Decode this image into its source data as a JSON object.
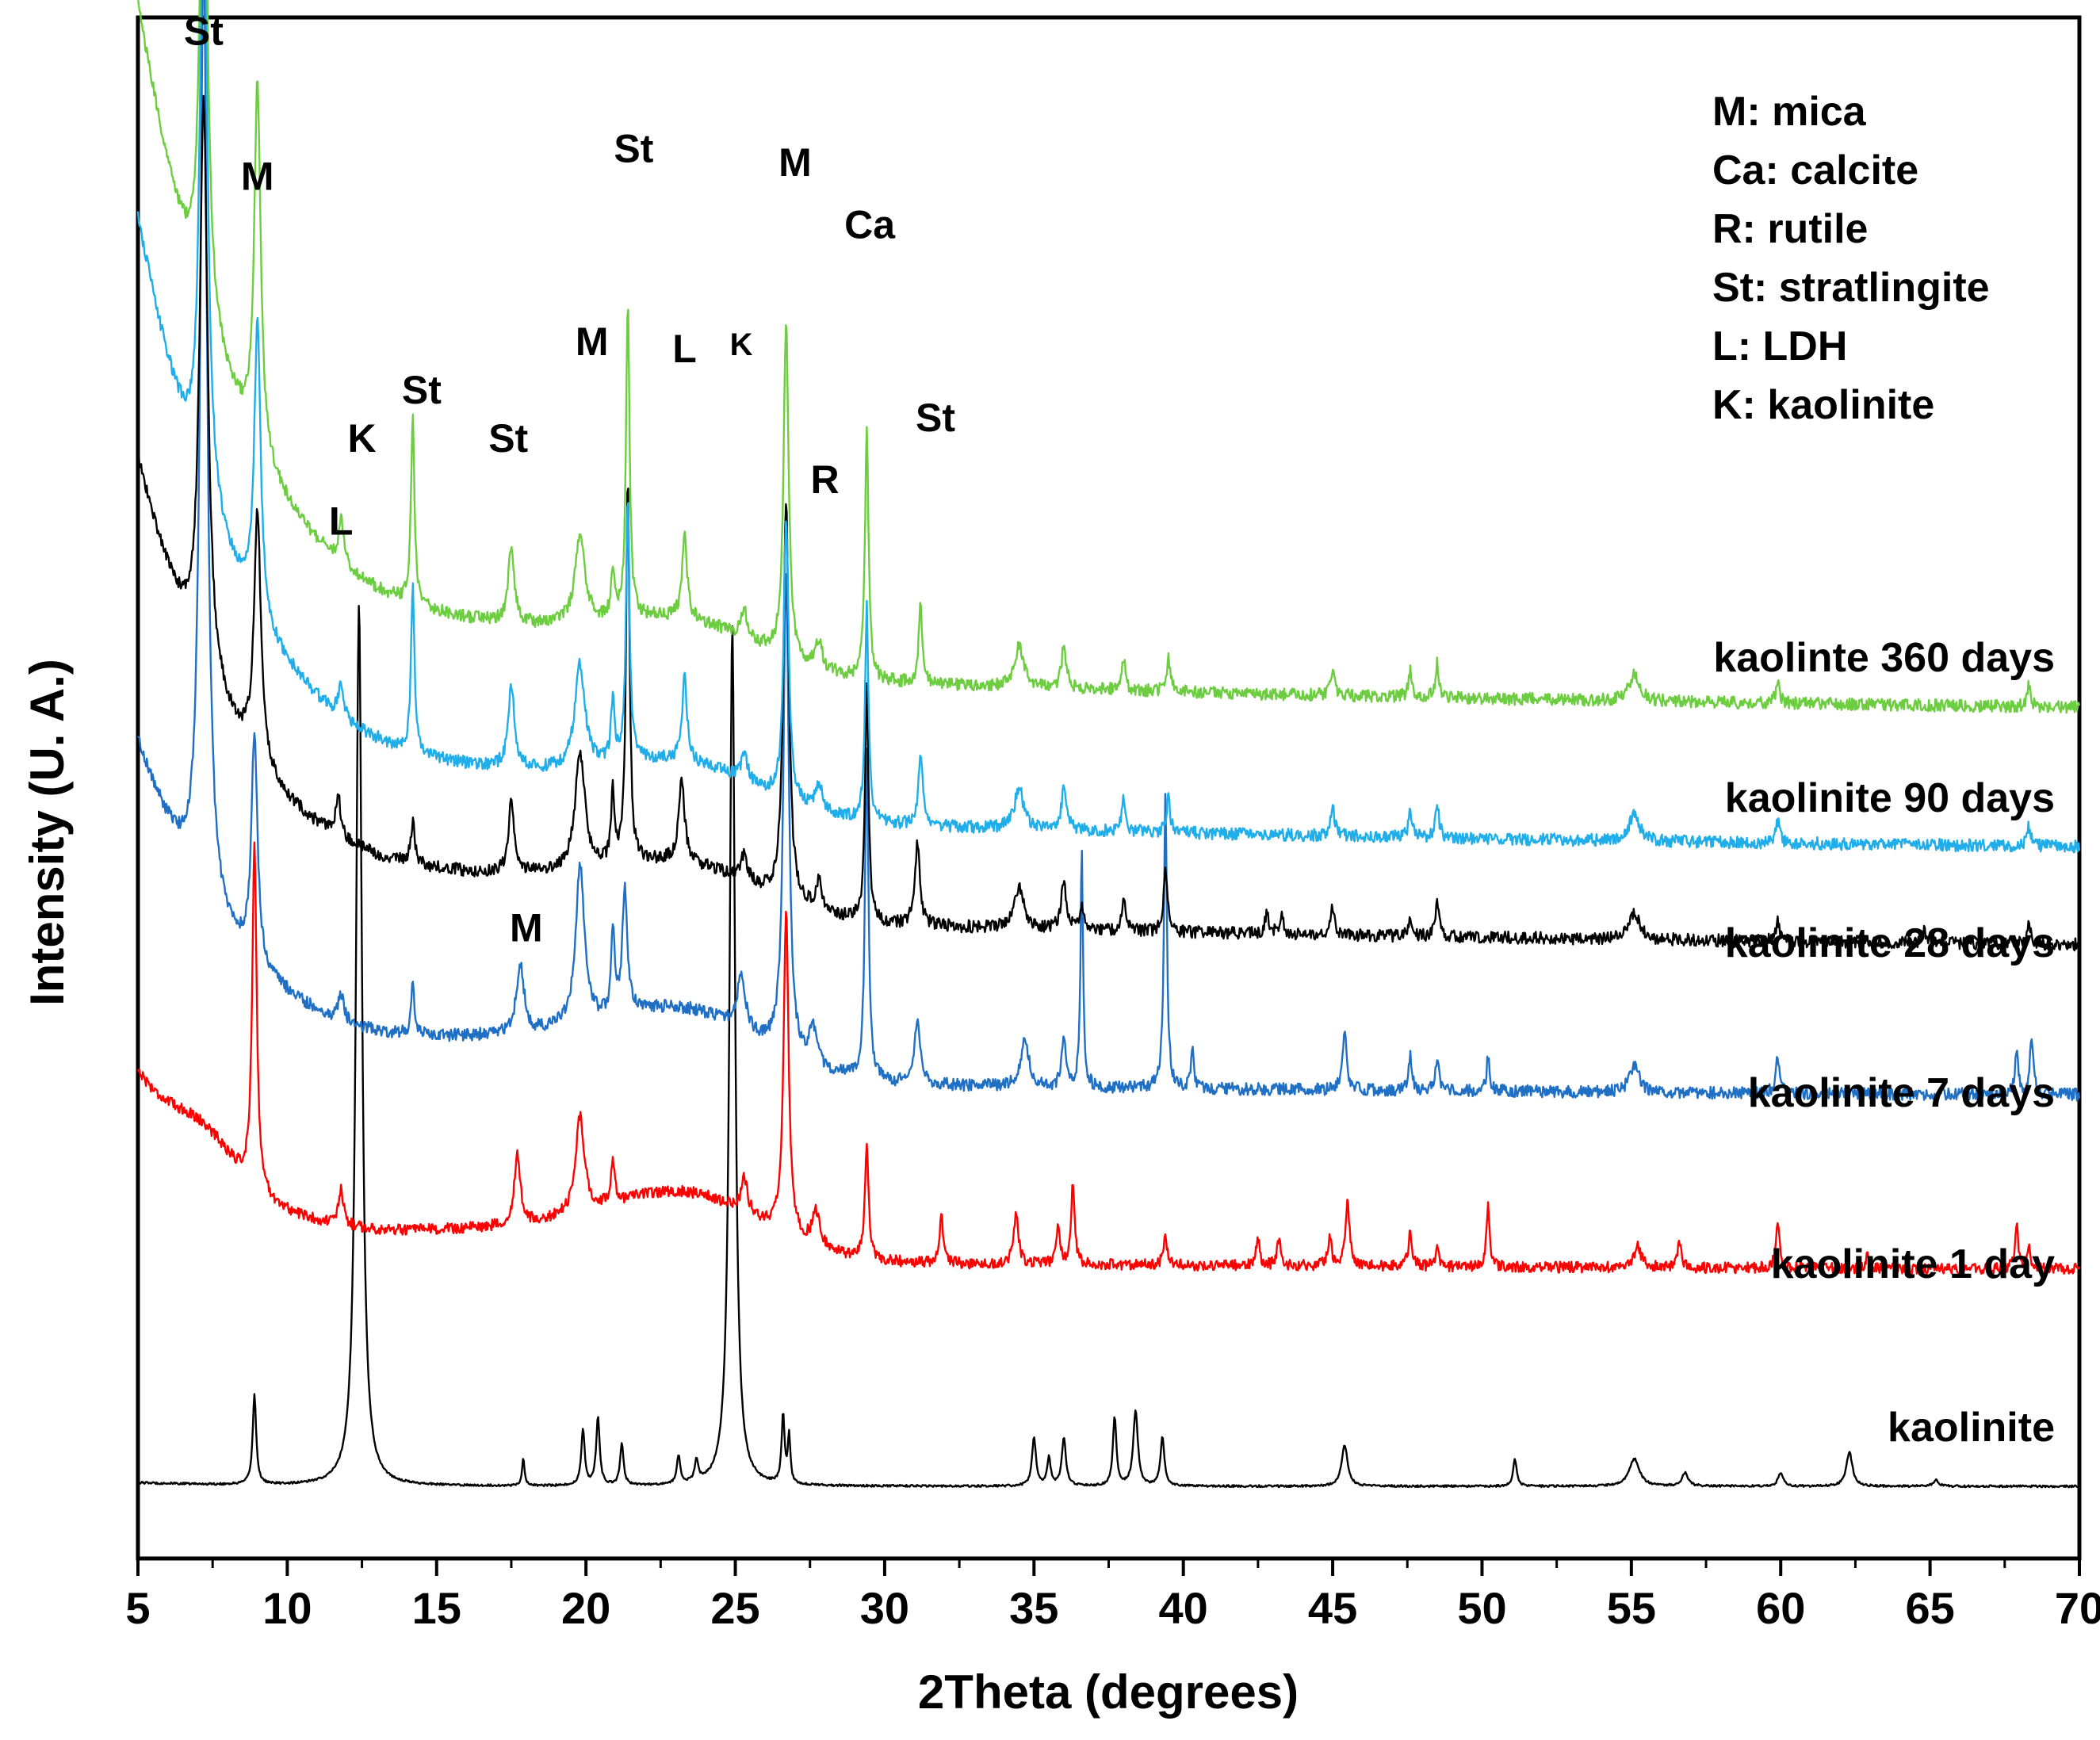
{
  "chart_data": {
    "type": "line",
    "title": "",
    "xlabel": "2Theta (degrees)",
    "ylabel": "Intensity (U. A.)",
    "xlim": [
      5,
      70
    ],
    "xticks": [
      5,
      10,
      15,
      20,
      25,
      30,
      35,
      40,
      45,
      50,
      55,
      60,
      65,
      70
    ],
    "grid": false,
    "legend": [
      "M: mica",
      "Ca: calcite",
      "R: rutile",
      "St: stratlingite",
      "L: LDH",
      "K: kaolinite"
    ],
    "series": [
      {
        "name": "kaolinite",
        "color": "#000000",
        "baseline": 0.0,
        "noise": 0.0015,
        "start": 0.005,
        "end": 0.0,
        "peaks": [
          [
            8.9,
            0.13,
            0.07
          ],
          [
            12.4,
            1.28,
            0.12
          ],
          [
            17.9,
            0.04,
            0.05
          ],
          [
            19.9,
            0.08,
            0.07
          ],
          [
            20.4,
            0.1,
            0.07
          ],
          [
            21.2,
            0.06,
            0.07
          ],
          [
            23.1,
            0.04,
            0.07
          ],
          [
            23.7,
            0.03,
            0.07
          ],
          [
            24.9,
            1.25,
            0.11
          ],
          [
            26.6,
            0.1,
            0.06
          ],
          [
            26.8,
            0.07,
            0.05
          ],
          [
            35.0,
            0.07,
            0.08
          ],
          [
            35.5,
            0.04,
            0.07
          ],
          [
            36.0,
            0.07,
            0.08
          ],
          [
            37.7,
            0.1,
            0.07
          ],
          [
            38.4,
            0.11,
            0.09
          ],
          [
            39.3,
            0.07,
            0.08
          ],
          [
            45.4,
            0.06,
            0.12
          ],
          [
            51.1,
            0.04,
            0.07
          ],
          [
            55.1,
            0.04,
            0.2
          ],
          [
            56.8,
            0.02,
            0.12
          ],
          [
            60.0,
            0.02,
            0.1
          ],
          [
            62.3,
            0.05,
            0.12
          ],
          [
            65.2,
            0.01,
            0.1
          ]
        ]
      },
      {
        "name": "kaolinite 1 day",
        "color": "#ff0000",
        "baseline": 0.31,
        "noise": 0.008,
        "start": 0.29,
        "end": 0.025,
        "broad": [
          [
            7.2,
            0.05,
            1.0
          ],
          [
            18.5,
            0.04,
            4.0
          ],
          [
            23.5,
            0.08,
            2.5
          ]
        ],
        "peaks": [
          [
            8.9,
            0.5,
            0.09
          ],
          [
            11.8,
            0.05,
            0.1
          ],
          [
            17.7,
            0.1,
            0.12
          ],
          [
            19.8,
            0.14,
            0.18
          ],
          [
            20.9,
            0.06,
            0.08
          ],
          [
            25.3,
            0.05,
            0.12
          ],
          [
            26.7,
            0.47,
            0.1
          ],
          [
            27.7,
            0.05,
            0.15
          ],
          [
            29.4,
            0.17,
            0.07
          ],
          [
            31.9,
            0.07,
            0.07
          ],
          [
            34.4,
            0.07,
            0.1
          ],
          [
            35.8,
            0.05,
            0.08
          ],
          [
            36.3,
            0.12,
            0.07
          ],
          [
            39.4,
            0.04,
            0.08
          ],
          [
            42.5,
            0.04,
            0.07
          ],
          [
            43.2,
            0.04,
            0.07
          ],
          [
            44.9,
            0.04,
            0.08
          ],
          [
            45.5,
            0.09,
            0.08
          ],
          [
            47.6,
            0.05,
            0.07
          ],
          [
            48.5,
            0.03,
            0.07
          ],
          [
            50.2,
            0.09,
            0.06
          ],
          [
            55.2,
            0.03,
            0.15
          ],
          [
            56.6,
            0.04,
            0.07
          ],
          [
            59.9,
            0.07,
            0.07
          ],
          [
            62.9,
            0.02,
            0.07
          ],
          [
            67.9,
            0.06,
            0.07
          ],
          [
            68.3,
            0.03,
            0.07
          ]
        ]
      },
      {
        "name": "kaolinite 7 days",
        "color": "#1f6fc5",
        "baseline": 0.56,
        "noise": 0.009,
        "start": 0.52,
        "end": 0.04,
        "broad": [
          [
            18.5,
            0.05,
            4.0
          ],
          [
            23.5,
            0.08,
            2.5
          ]
        ],
        "peaks": [
          [
            7.2,
            1.37,
            0.14
          ],
          [
            8.9,
            0.33,
            0.12
          ],
          [
            11.8,
            0.04,
            0.1
          ],
          [
            14.2,
            0.07,
            0.07
          ],
          [
            17.8,
            0.1,
            0.15
          ],
          [
            19.8,
            0.23,
            0.18
          ],
          [
            20.9,
            0.12,
            0.07
          ],
          [
            21.3,
            0.18,
            0.1
          ],
          [
            25.2,
            0.08,
            0.15
          ],
          [
            26.7,
            0.7,
            0.11
          ],
          [
            27.6,
            0.05,
            0.15
          ],
          [
            29.4,
            0.48,
            0.07
          ],
          [
            31.1,
            0.09,
            0.12
          ],
          [
            34.7,
            0.07,
            0.15
          ],
          [
            36.0,
            0.07,
            0.08
          ],
          [
            36.6,
            0.34,
            0.05
          ],
          [
            39.4,
            0.42,
            0.06
          ],
          [
            40.3,
            0.06,
            0.06
          ],
          [
            45.4,
            0.09,
            0.08
          ],
          [
            47.6,
            0.05,
            0.07
          ],
          [
            48.5,
            0.05,
            0.07
          ],
          [
            50.2,
            0.05,
            0.06
          ],
          [
            55.1,
            0.04,
            0.18
          ],
          [
            59.9,
            0.05,
            0.08
          ],
          [
            67.9,
            0.06,
            0.07
          ],
          [
            68.4,
            0.08,
            0.07
          ]
        ]
      },
      {
        "name": "kaolinite 28 days",
        "color": "#000000",
        "baseline": 0.77,
        "noise": 0.009,
        "start": 0.72,
        "end": 0.08,
        "broad": [
          [
            18.5,
            0.04,
            4.0
          ],
          [
            23.5,
            0.06,
            2.5
          ]
        ],
        "peaks": [
          [
            7.2,
            0.82,
            0.16
          ],
          [
            9.0,
            0.36,
            0.14
          ],
          [
            11.7,
            0.06,
            0.1
          ],
          [
            14.2,
            0.06,
            0.08
          ],
          [
            17.5,
            0.1,
            0.12
          ],
          [
            19.8,
            0.17,
            0.2
          ],
          [
            20.9,
            0.1,
            0.07
          ],
          [
            21.4,
            0.55,
            0.07
          ],
          [
            23.2,
            0.12,
            0.12
          ],
          [
            25.3,
            0.04,
            0.12
          ],
          [
            26.7,
            0.58,
            0.11
          ],
          [
            27.8,
            0.04,
            0.12
          ],
          [
            29.4,
            0.34,
            0.07
          ],
          [
            31.1,
            0.12,
            0.1
          ],
          [
            34.5,
            0.06,
            0.2
          ],
          [
            36.0,
            0.07,
            0.1
          ],
          [
            36.6,
            0.04,
            0.07
          ],
          [
            38.0,
            0.05,
            0.07
          ],
          [
            39.4,
            0.1,
            0.07
          ],
          [
            42.8,
            0.03,
            0.08
          ],
          [
            43.3,
            0.03,
            0.07
          ],
          [
            45.0,
            0.04,
            0.08
          ],
          [
            47.6,
            0.03,
            0.07
          ],
          [
            48.5,
            0.05,
            0.07
          ],
          [
            55.1,
            0.04,
            0.2
          ],
          [
            59.9,
            0.03,
            0.08
          ],
          [
            64.8,
            0.02,
            0.07
          ],
          [
            68.3,
            0.03,
            0.07
          ]
        ]
      },
      {
        "name": "kaolinite 90 days",
        "color": "#1faee9",
        "baseline": 0.91,
        "noise": 0.009,
        "start": 0.93,
        "end": 0.09,
        "broad": [
          [
            18.5,
            0.04,
            4.0
          ],
          [
            23.5,
            0.06,
            2.5
          ]
        ],
        "peaks": [
          [
            7.2,
            0.98,
            0.14
          ],
          [
            9.0,
            0.42,
            0.13
          ],
          [
            11.8,
            0.05,
            0.1
          ],
          [
            14.2,
            0.24,
            0.07
          ],
          [
            17.5,
            0.12,
            0.12
          ],
          [
            19.8,
            0.15,
            0.2
          ],
          [
            20.9,
            0.09,
            0.07
          ],
          [
            21.4,
            0.38,
            0.07
          ],
          [
            23.3,
            0.12,
            0.1
          ],
          [
            25.3,
            0.04,
            0.12
          ],
          [
            26.7,
            0.41,
            0.1
          ],
          [
            27.8,
            0.04,
            0.12
          ],
          [
            29.4,
            0.31,
            0.07
          ],
          [
            31.2,
            0.11,
            0.08
          ],
          [
            34.5,
            0.06,
            0.18
          ],
          [
            36.0,
            0.06,
            0.1
          ],
          [
            38.0,
            0.05,
            0.07
          ],
          [
            39.5,
            0.05,
            0.07
          ],
          [
            45.0,
            0.04,
            0.08
          ],
          [
            47.6,
            0.04,
            0.07
          ],
          [
            48.5,
            0.05,
            0.07
          ],
          [
            55.1,
            0.04,
            0.2
          ],
          [
            59.9,
            0.03,
            0.08
          ],
          [
            68.3,
            0.03,
            0.07
          ]
        ]
      },
      {
        "name": "kaolinte 360 days",
        "color": "#6dcd40",
        "baseline": 1.11,
        "noise": 0.009,
        "start": 1.04,
        "end": 0.1,
        "broad": [
          [
            18.5,
            0.04,
            4.0
          ],
          [
            23.5,
            0.06,
            2.5
          ]
        ],
        "peaks": [
          [
            7.2,
            0.84,
            0.14
          ],
          [
            9.0,
            0.53,
            0.13
          ],
          [
            11.8,
            0.07,
            0.09
          ],
          [
            14.2,
            0.27,
            0.07
          ],
          [
            17.5,
            0.11,
            0.12
          ],
          [
            19.8,
            0.13,
            0.2
          ],
          [
            20.9,
            0.07,
            0.07
          ],
          [
            21.4,
            0.46,
            0.07
          ],
          [
            23.3,
            0.12,
            0.1
          ],
          [
            25.3,
            0.04,
            0.12
          ],
          [
            26.7,
            0.49,
            0.1
          ],
          [
            27.8,
            0.04,
            0.12
          ],
          [
            29.4,
            0.37,
            0.07
          ],
          [
            31.2,
            0.11,
            0.08
          ],
          [
            34.5,
            0.06,
            0.18
          ],
          [
            36.0,
            0.06,
            0.1
          ],
          [
            38.0,
            0.05,
            0.07
          ],
          [
            39.5,
            0.05,
            0.07
          ],
          [
            45.0,
            0.04,
            0.08
          ],
          [
            47.6,
            0.04,
            0.07
          ],
          [
            48.5,
            0.05,
            0.07
          ],
          [
            55.1,
            0.04,
            0.2
          ],
          [
            59.9,
            0.03,
            0.08
          ],
          [
            68.3,
            0.03,
            0.07
          ]
        ]
      }
    ],
    "peak_annotations": [
      {
        "text": "St",
        "x": 7.2,
        "level": 2.09,
        "size": "large"
      },
      {
        "text": "M",
        "x": 9.0,
        "level": 1.88,
        "size": "large"
      },
      {
        "text": "L",
        "x": 11.8,
        "level": 1.38,
        "size": "large"
      },
      {
        "text": "K",
        "x": 12.5,
        "level": 1.5,
        "size": "large"
      },
      {
        "text": "St",
        "x": 14.5,
        "level": 1.57,
        "size": "large"
      },
      {
        "text": "St",
        "x": 17.4,
        "level": 1.5,
        "size": "large"
      },
      {
        "text": "M",
        "x": 18.0,
        "level": 0.79,
        "size": "large"
      },
      {
        "text": "M",
        "x": 20.2,
        "level": 1.64,
        "size": "large"
      },
      {
        "text": "St",
        "x": 21.6,
        "level": 1.92,
        "size": "large"
      },
      {
        "text": "L",
        "x": 23.3,
        "level": 1.63,
        "size": "large"
      },
      {
        "text": "K",
        "x": 25.2,
        "level": 1.64,
        "size": "small"
      },
      {
        "text": "M",
        "x": 27.0,
        "level": 1.9,
        "size": "large"
      },
      {
        "text": "R",
        "x": 28.0,
        "level": 1.44,
        "size": "large"
      },
      {
        "text": "Ca",
        "x": 29.5,
        "level": 1.81,
        "size": "large"
      },
      {
        "text": "St",
        "x": 31.7,
        "level": 1.53,
        "size": "large"
      }
    ]
  }
}
